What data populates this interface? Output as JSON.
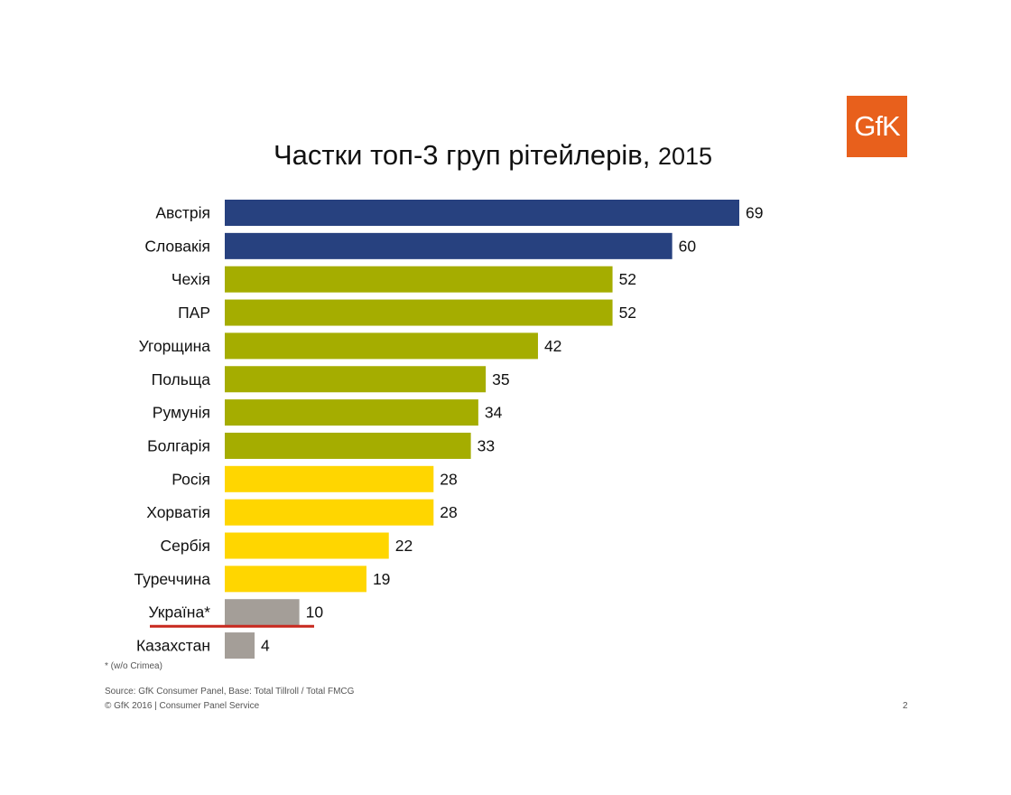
{
  "logo": {
    "text": "GfK",
    "color": "#e8601c"
  },
  "title": {
    "main": "Частки топ-3 груп рітейлерів,",
    "year": "2015"
  },
  "chart_data": {
    "type": "bar",
    "orientation": "horizontal",
    "title": "Частки топ-3 груп рітейлерів, 2015",
    "categories": [
      "Австрія",
      "Словакія",
      "Чехія",
      "ПАР",
      "Угорщина",
      "Польща",
      "Румунія",
      "Болгарія",
      "Росія",
      "Хорватія",
      "Сербія",
      "Туреччина",
      "Україна*",
      "Казахстан"
    ],
    "values": [
      69,
      60,
      52,
      52,
      42,
      35,
      34,
      33,
      28,
      28,
      22,
      19,
      10,
      4
    ],
    "bar_colors": [
      "#27417f",
      "#27417f",
      "#a5ad00",
      "#a5ad00",
      "#a5ad00",
      "#a5ad00",
      "#a5ad00",
      "#a5ad00",
      "#ffd600",
      "#ffd600",
      "#ffd600",
      "#ffd600",
      "#a49e98",
      "#a49e98"
    ],
    "highlight_category": "Україна*",
    "highlight_color": "#c8281e",
    "xlim": [
      0,
      69
    ],
    "grid": false,
    "legend": "none",
    "xlabel": "",
    "ylabel": ""
  },
  "footnote": "* (w/o Crimea)",
  "source": "Source: GfK Consumer Panel, Base: Total Tillroll / Total FMCG",
  "copyright": "© GfK 2016 | Consumer Panel Service",
  "page_number": "2"
}
